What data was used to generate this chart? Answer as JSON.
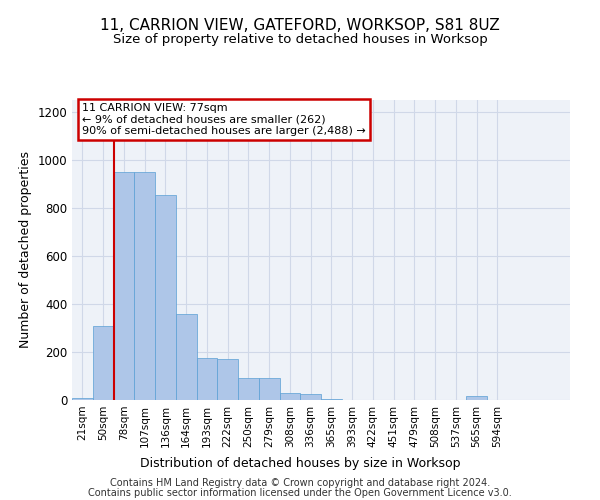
{
  "title1": "11, CARRION VIEW, GATEFORD, WORKSOP, S81 8UZ",
  "title2": "Size of property relative to detached houses in Worksop",
  "xlabel": "Distribution of detached houses by size in Worksop",
  "ylabel": "Number of detached properties",
  "footer1": "Contains HM Land Registry data © Crown copyright and database right 2024.",
  "footer2": "Contains public sector information licensed under the Open Government Licence v3.0.",
  "annotation_line1": "11 CARRION VIEW: 77sqm",
  "annotation_line2": "← 9% of detached houses are smaller (262)",
  "annotation_line3": "90% of semi-detached houses are larger (2,488) →",
  "bar_values": [
    10,
    310,
    950,
    950,
    855,
    360,
    175,
    170,
    90,
    90,
    30,
    25,
    5,
    0,
    0,
    0,
    0,
    0,
    0,
    15,
    0,
    0,
    0,
    0
  ],
  "bin_labels": [
    "21sqm",
    "50sqm",
    "78sqm",
    "107sqm",
    "136sqm",
    "164sqm",
    "193sqm",
    "222sqm",
    "250sqm",
    "279sqm",
    "308sqm",
    "336sqm",
    "365sqm",
    "393sqm",
    "422sqm",
    "451sqm",
    "479sqm",
    "508sqm",
    "537sqm",
    "565sqm",
    "594sqm"
  ],
  "bar_color": "#aec6e8",
  "bar_edge_color": "#5a9fd4",
  "vline_color": "#cc0000",
  "annotation_box_color": "#cc0000",
  "ylim": [
    0,
    1250
  ],
  "yticks": [
    0,
    200,
    400,
    600,
    800,
    1000,
    1200
  ],
  "grid_color": "#d0d8e8",
  "bg_color": "#eef2f8",
  "title1_fontsize": 11,
  "title2_fontsize": 9.5,
  "tick_fontsize": 7.5,
  "ylabel_fontsize": 9,
  "xlabel_fontsize": 9,
  "footer_fontsize": 7
}
